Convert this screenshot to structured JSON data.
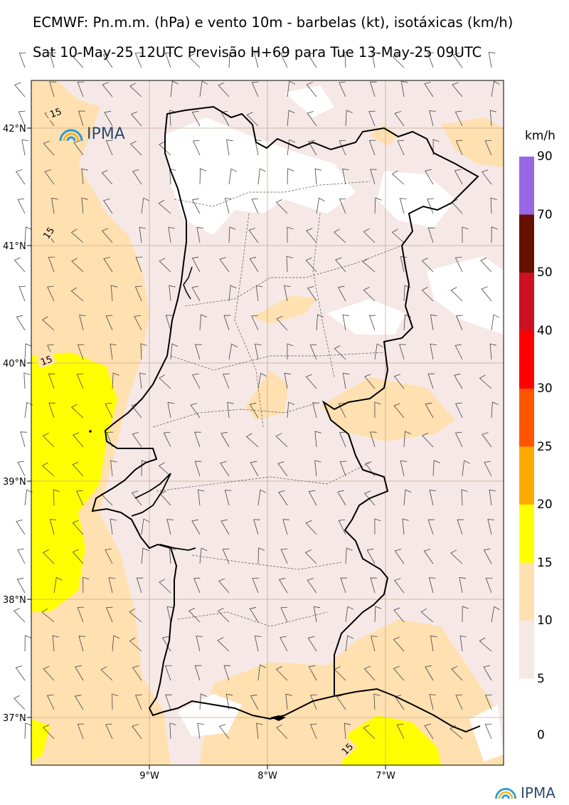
{
  "titles": {
    "line1": "ECMWF: Pn.m.m. (hPa) e vento 10m - barbelas (kt), isotáxicas (km/h)",
    "line2": "Sat 10-May-25 12UTC Previsão H+69 para Tue 13-May-25 09UTC"
  },
  "axes": {
    "lat_labels": [
      "42°N",
      "41°N",
      "40°N",
      "39°N",
      "38°N",
      "37°N"
    ],
    "lon_labels": [
      "9°W",
      "8°W",
      "7°W"
    ]
  },
  "map_region": {
    "lon_range": [
      -10.0,
      -6.0
    ],
    "lat_range": [
      36.6,
      42.4
    ]
  },
  "isotach_labels": [
    "15",
    "15",
    "15",
    "15"
  ],
  "logo": {
    "text": "IPMA"
  },
  "colorbar": {
    "unit": "km/h",
    "levels": [
      {
        "label": "90",
        "color": null
      },
      {
        "label": "70",
        "color": "#9966e6"
      },
      {
        "label": "50",
        "color": "#661100"
      },
      {
        "label": "40",
        "color": "#cc1122"
      },
      {
        "label": "30",
        "color": "#ff0000"
      },
      {
        "label": "25",
        "color": "#ff5500"
      },
      {
        "label": "20",
        "color": "#ffaa00"
      },
      {
        "label": "15",
        "color": "#ffff00"
      },
      {
        "label": "10",
        "color": "#ffe0b0"
      },
      {
        "label": "5",
        "color": "#f5e8e6"
      },
      {
        "label": "0",
        "color": null
      }
    ]
  },
  "colors": {
    "calm": "#ffffff",
    "light": "#f5e8e6",
    "moderate": "#ffe0b0",
    "fresh": "#ffff00",
    "coast": "#000000",
    "grid": "#c8a890"
  }
}
